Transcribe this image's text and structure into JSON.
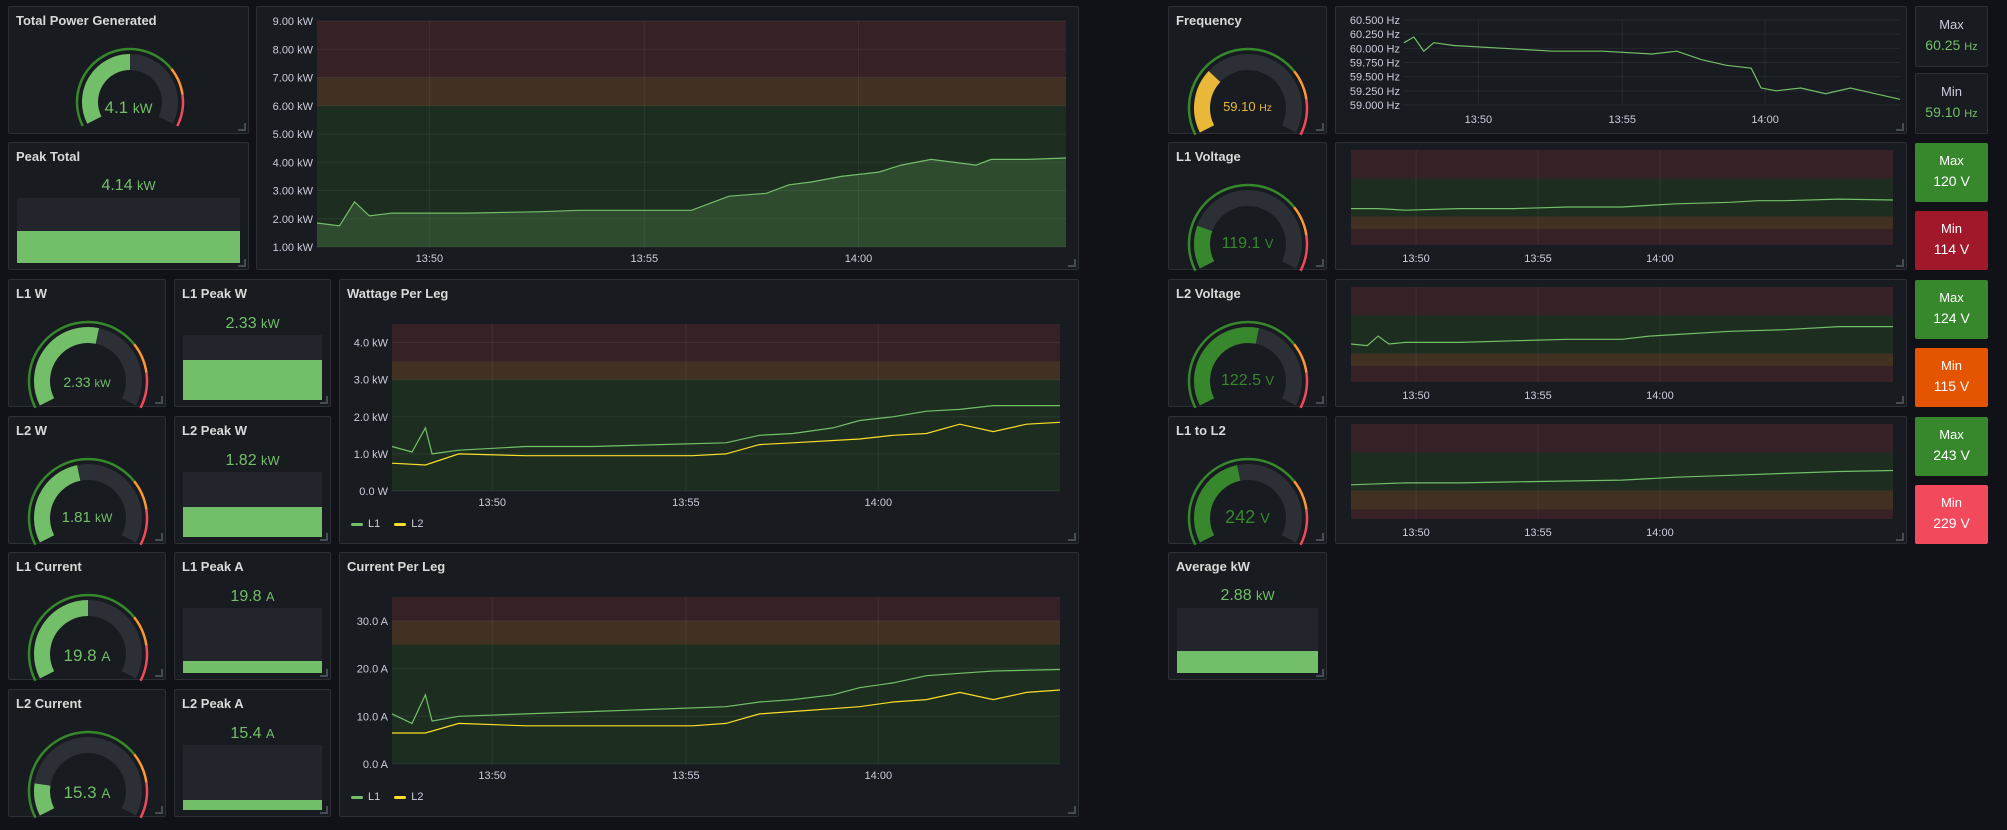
{
  "colors": {
    "green": "#73bf69",
    "yellow": "#fade2a",
    "orange": "#ff9830",
    "red": "#f2495c",
    "dark_green": "#37872d",
    "dark_red": "#a0182a",
    "dark_orange": "#e55400"
  },
  "panels": {
    "total_power": {
      "title": "Total Power Generated",
      "value": "4.1",
      "unit": "kW",
      "fraction": 0.5
    },
    "peak_total": {
      "title": "Peak Total",
      "value": "4.14",
      "unit": "kW",
      "fraction": 1.0
    },
    "l1_w": {
      "title": "L1 W",
      "value": "2.33",
      "unit": "kW",
      "fraction": 0.55
    },
    "l1_peak_w": {
      "title": "L1 Peak W",
      "value": "2.33",
      "unit": "kW",
      "fraction": 1.0
    },
    "l2_w": {
      "title": "L2 W",
      "value": "1.81",
      "unit": "kW",
      "fraction": 0.45
    },
    "l2_peak_w": {
      "title": "L2 Peak W",
      "value": "1.82",
      "unit": "kW",
      "fraction": 1.0
    },
    "l1_current": {
      "title": "L1 Current",
      "value": "19.8",
      "unit": "A",
      "fraction": 0.5
    },
    "l1_peak_a": {
      "title": "L1 Peak A",
      "value": "19.8",
      "unit": "A",
      "fraction": 1.0
    },
    "l2_current": {
      "title": "L2 Current",
      "value": "15.3",
      "unit": "A",
      "fraction": 0.15
    },
    "l2_peak_a": {
      "title": "L2 Peak A",
      "value": "15.4",
      "unit": "A",
      "fraction": 1.0
    },
    "wattage_per_leg": {
      "title": "Wattage Per Leg",
      "legend": [
        "L1",
        "L2"
      ]
    },
    "current_per_leg": {
      "title": "Current Per Leg",
      "legend": [
        "L1",
        "L2"
      ]
    },
    "frequency": {
      "title": "Frequency",
      "value": "59.10",
      "unit": "Hz",
      "fraction": 0.3
    },
    "freq_max": {
      "label": "Max",
      "value": "60.25",
      "unit": "Hz"
    },
    "freq_min": {
      "label": "Min",
      "value": "59.10",
      "unit": "Hz"
    },
    "l1_voltage": {
      "title": "L1 Voltage",
      "value": "119.1",
      "unit": "V",
      "fraction": 0.2
    },
    "l1v_max": {
      "label": "Max",
      "value": "120 V"
    },
    "l1v_min": {
      "label": "Min",
      "value": "114 V"
    },
    "l2_voltage": {
      "title": "L2 Voltage",
      "value": "122.5",
      "unit": "V",
      "fraction": 0.55
    },
    "l2v_max": {
      "label": "Max",
      "value": "124 V"
    },
    "l2v_min": {
      "label": "Min",
      "value": "115 V"
    },
    "l1_to_l2": {
      "title": "L1 to L2",
      "value": "242",
      "unit": "V",
      "fraction": 0.45
    },
    "l12_max": {
      "label": "Max",
      "value": "243 V"
    },
    "l12_min": {
      "label": "Min",
      "value": "229 V"
    },
    "average_kw": {
      "title": "Average kW",
      "value": "2.88",
      "unit": "kW",
      "fraction": 1.0
    }
  },
  "chart_data": [
    {
      "id": "total_power_chart",
      "type": "area",
      "x_labels": [
        "13:50",
        "13:55",
        "14:00"
      ],
      "x_range": [
        "13:47",
        "14:05"
      ],
      "ylim": [
        1,
        9
      ],
      "y_ticks": [
        "1.00 kW",
        "2.00 kW",
        "3.00 kW",
        "4.00 kW",
        "5.00 kW",
        "6.00 kW",
        "7.00 kW",
        "8.00 kW",
        "9.00 kW"
      ],
      "thresholds": [
        {
          "from": 1,
          "to": 6,
          "color": "green"
        },
        {
          "from": 6,
          "to": 7,
          "color": "orange"
        },
        {
          "from": 7,
          "to": 9,
          "color": "red"
        }
      ],
      "series": [
        {
          "color": "#73bf69",
          "x": [
            0,
            0.03,
            0.05,
            0.07,
            0.1,
            0.2,
            0.3,
            0.35,
            0.4,
            0.5,
            0.55,
            0.6,
            0.63,
            0.66,
            0.7,
            0.75,
            0.78,
            0.82,
            0.88,
            0.9,
            0.95,
            1.0
          ],
          "values": [
            1.85,
            1.75,
            2.6,
            2.1,
            2.2,
            2.2,
            2.25,
            2.3,
            2.3,
            2.3,
            2.8,
            2.9,
            3.2,
            3.3,
            3.5,
            3.65,
            3.9,
            4.1,
            3.9,
            4.1,
            4.1,
            4.15
          ]
        }
      ]
    },
    {
      "id": "wattage_chart",
      "type": "line",
      "x_labels": [
        "13:50",
        "13:55",
        "14:00"
      ],
      "ylim": [
        0,
        4.5
      ],
      "y_ticks": [
        "0.0 W",
        "1.0 kW",
        "2.0 kW",
        "3.0 kW",
        "4.0 kW"
      ],
      "thresholds": [
        {
          "from": 0,
          "to": 3,
          "color": "green"
        },
        {
          "from": 3,
          "to": 3.5,
          "color": "orange"
        },
        {
          "from": 3.5,
          "to": 4.5,
          "color": "red"
        }
      ],
      "series": [
        {
          "name": "L1",
          "color": "#73bf69",
          "x": [
            0,
            0.03,
            0.05,
            0.06,
            0.08,
            0.1,
            0.2,
            0.3,
            0.4,
            0.5,
            0.55,
            0.6,
            0.66,
            0.7,
            0.75,
            0.8,
            0.85,
            0.9,
            1.0
          ],
          "values": [
            1.2,
            1.05,
            1.7,
            1.0,
            1.05,
            1.1,
            1.2,
            1.2,
            1.25,
            1.3,
            1.5,
            1.55,
            1.7,
            1.9,
            2.0,
            2.15,
            2.2,
            2.3,
            2.3
          ]
        },
        {
          "name": "L2",
          "color": "#fade2a",
          "x": [
            0,
            0.05,
            0.1,
            0.2,
            0.3,
            0.45,
            0.5,
            0.55,
            0.6,
            0.7,
            0.75,
            0.8,
            0.85,
            0.9,
            0.95,
            1.0
          ],
          "values": [
            0.75,
            0.7,
            1.0,
            0.95,
            0.95,
            0.95,
            1.0,
            1.25,
            1.3,
            1.4,
            1.5,
            1.55,
            1.8,
            1.6,
            1.8,
            1.85
          ]
        }
      ]
    },
    {
      "id": "current_chart",
      "type": "line",
      "x_labels": [
        "13:50",
        "13:55",
        "14:00"
      ],
      "ylim": [
        0,
        35
      ],
      "y_ticks": [
        "0.0 A",
        "10.0 A",
        "20.0 A",
        "30.0 A"
      ],
      "thresholds": [
        {
          "from": 0,
          "to": 25,
          "color": "green"
        },
        {
          "from": 25,
          "to": 30,
          "color": "orange"
        },
        {
          "from": 30,
          "to": 35,
          "color": "red"
        }
      ],
      "series": [
        {
          "name": "L1",
          "color": "#73bf69",
          "x": [
            0,
            0.03,
            0.05,
            0.06,
            0.08,
            0.1,
            0.2,
            0.3,
            0.4,
            0.5,
            0.55,
            0.6,
            0.66,
            0.7,
            0.75,
            0.8,
            0.85,
            0.9,
            1.0
          ],
          "values": [
            10.5,
            8.5,
            14.5,
            9,
            9.5,
            10,
            10.5,
            11,
            11.5,
            12,
            13,
            13.5,
            14.5,
            16,
            17,
            18.5,
            19,
            19.5,
            19.8
          ]
        },
        {
          "name": "L2",
          "color": "#fade2a",
          "x": [
            0,
            0.05,
            0.1,
            0.2,
            0.3,
            0.45,
            0.5,
            0.55,
            0.6,
            0.7,
            0.75,
            0.8,
            0.85,
            0.9,
            0.95,
            1.0
          ],
          "values": [
            6.5,
            6.5,
            8.5,
            8,
            8,
            8,
            8.5,
            10.5,
            11,
            12,
            13,
            13.5,
            15,
            13.5,
            15,
            15.5
          ]
        }
      ]
    },
    {
      "id": "frequency_chart",
      "type": "line",
      "x_labels": [
        "13:50",
        "13:55",
        "14:00"
      ],
      "ylim": [
        59.0,
        60.5
      ],
      "y_ticks": [
        "59.000 Hz",
        "59.250 Hz",
        "59.500 Hz",
        "59.750 Hz",
        "60.000 Hz",
        "60.250 Hz",
        "60.500 Hz"
      ],
      "series": [
        {
          "color": "#73bf69",
          "x": [
            0,
            0.02,
            0.04,
            0.06,
            0.1,
            0.2,
            0.3,
            0.4,
            0.5,
            0.55,
            0.6,
            0.65,
            0.7,
            0.72,
            0.75,
            0.8,
            0.85,
            0.9,
            0.95,
            1.0
          ],
          "values": [
            60.1,
            60.2,
            59.95,
            60.1,
            60.05,
            60.0,
            59.95,
            59.95,
            59.9,
            59.95,
            59.8,
            59.7,
            59.65,
            59.3,
            59.25,
            59.3,
            59.2,
            59.3,
            59.2,
            59.1
          ]
        }
      ]
    },
    {
      "id": "l1_voltage_chart",
      "type": "line",
      "x_labels": [
        "13:50",
        "13:55",
        "14:00"
      ],
      "ylim": [
        105,
        135
      ],
      "thresholds": [
        {
          "from": 105,
          "to": 110,
          "color": "red"
        },
        {
          "from": 110,
          "to": 114,
          "color": "orange"
        },
        {
          "from": 114,
          "to": 126,
          "color": "green"
        },
        {
          "from": 126,
          "to": 135,
          "color": "red"
        }
      ],
      "series": [
        {
          "color": "#73bf69",
          "x": [
            0,
            0.05,
            0.1,
            0.2,
            0.3,
            0.4,
            0.5,
            0.55,
            0.6,
            0.7,
            0.75,
            0.8,
            0.9,
            1.0
          ],
          "values": [
            116.5,
            116.5,
            116,
            116.5,
            116.5,
            117,
            117,
            117.5,
            118,
            118.5,
            119,
            119,
            119.5,
            119.2
          ]
        }
      ]
    },
    {
      "id": "l2_voltage_chart",
      "type": "line",
      "x_labels": [
        "13:50",
        "13:55",
        "14:00"
      ],
      "ylim": [
        105,
        135
      ],
      "thresholds": [
        {
          "from": 105,
          "to": 110,
          "color": "red"
        },
        {
          "from": 110,
          "to": 114,
          "color": "orange"
        },
        {
          "from": 114,
          "to": 126,
          "color": "green"
        },
        {
          "from": 126,
          "to": 135,
          "color": "red"
        }
      ],
      "series": [
        {
          "color": "#73bf69",
          "x": [
            0,
            0.03,
            0.05,
            0.07,
            0.1,
            0.2,
            0.3,
            0.4,
            0.5,
            0.55,
            0.6,
            0.7,
            0.8,
            0.9,
            1.0
          ],
          "values": [
            117,
            116.5,
            119.5,
            117,
            117.5,
            117.5,
            118,
            118.5,
            118.5,
            119.5,
            120,
            121,
            121.5,
            122.5,
            122.5
          ]
        }
      ]
    },
    {
      "id": "l1_to_l2_chart",
      "type": "line",
      "x_labels": [
        "13:50",
        "13:55",
        "14:00"
      ],
      "ylim": [
        215,
        265
      ],
      "thresholds": [
        {
          "from": 215,
          "to": 220,
          "color": "red"
        },
        {
          "from": 220,
          "to": 230,
          "color": "orange"
        },
        {
          "from": 230,
          "to": 250,
          "color": "green"
        },
        {
          "from": 250,
          "to": 265,
          "color": "red"
        }
      ],
      "series": [
        {
          "color": "#73bf69",
          "x": [
            0,
            0.05,
            0.1,
            0.2,
            0.3,
            0.4,
            0.5,
            0.6,
            0.7,
            0.8,
            0.9,
            1.0
          ],
          "values": [
            233,
            233.5,
            234,
            234,
            234.5,
            235,
            235.5,
            237,
            238,
            239,
            240,
            240.5
          ]
        }
      ]
    }
  ]
}
